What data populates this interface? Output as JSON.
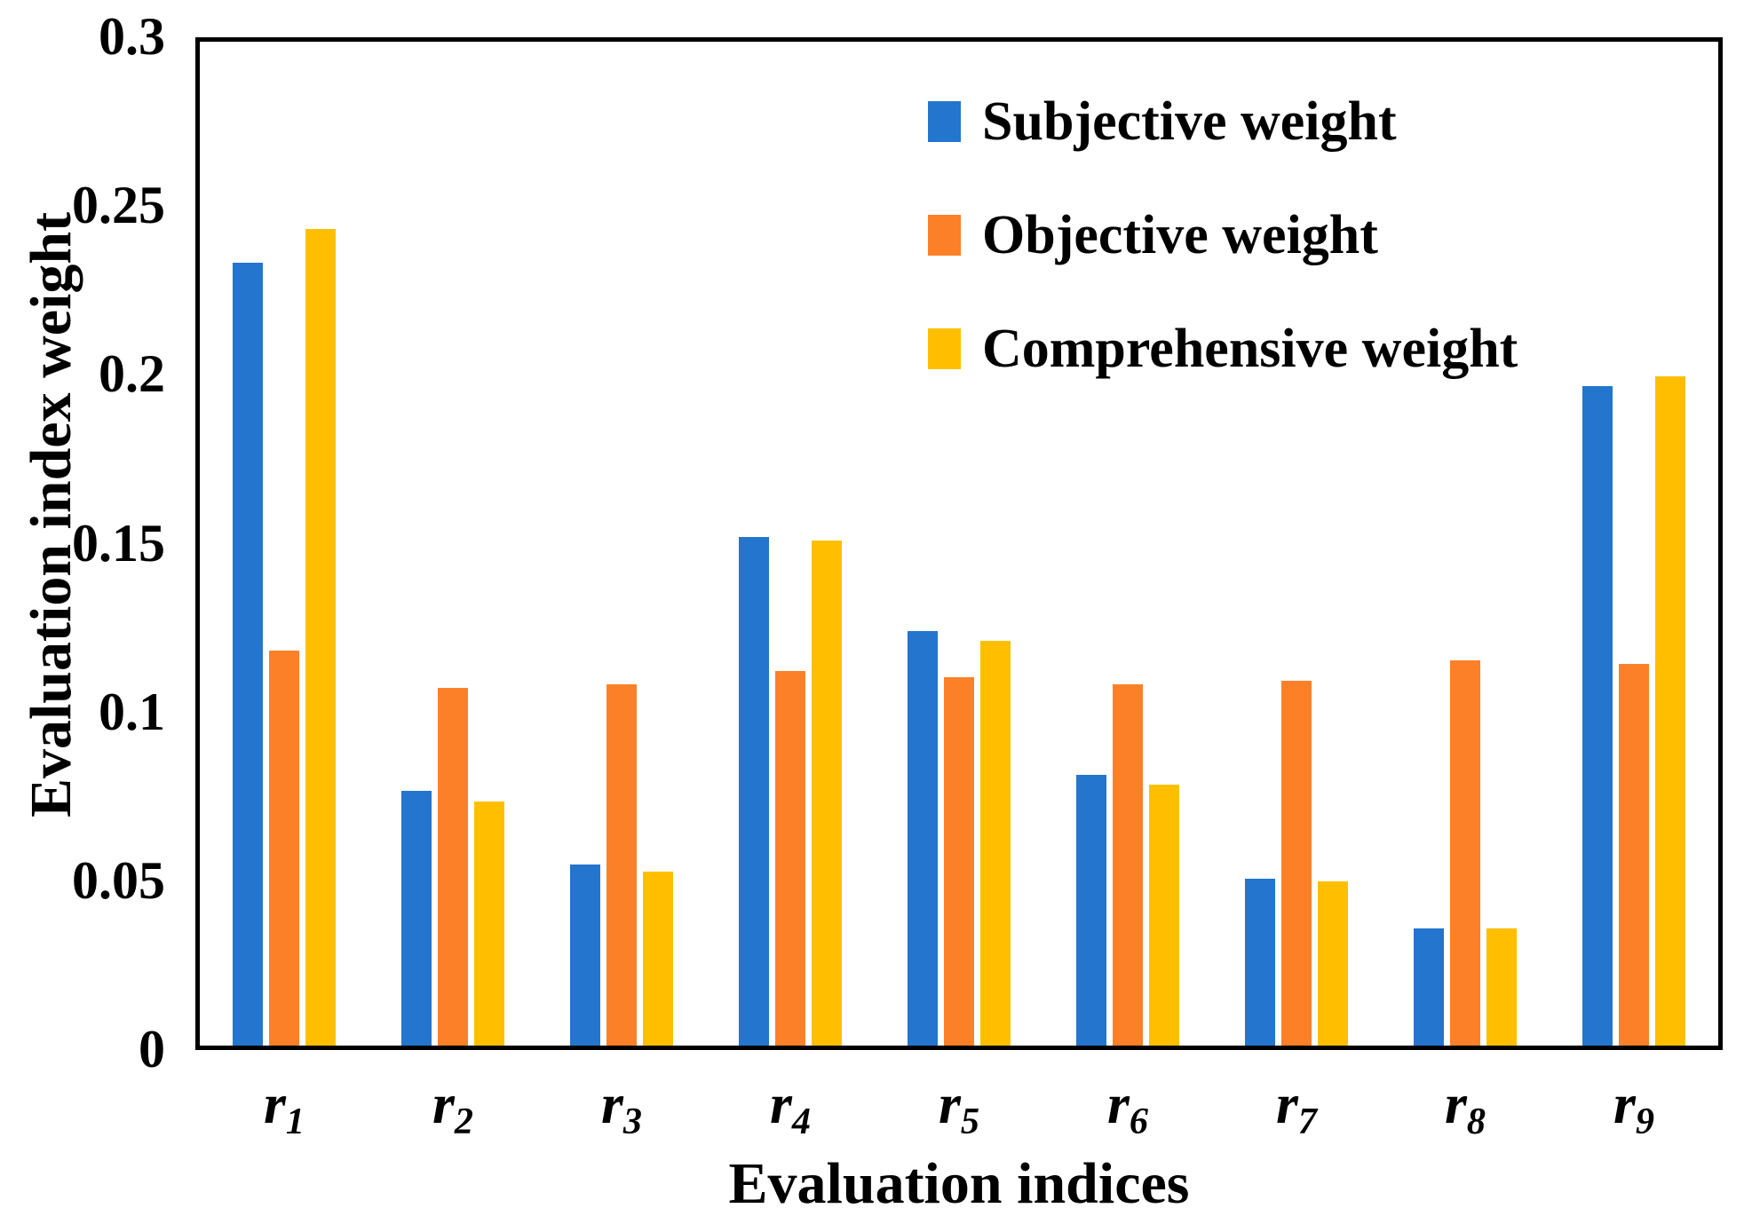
{
  "chart_data": {
    "type": "bar",
    "title": "",
    "xlabel": "Evaluation indices",
    "ylabel": "Evaluation index weight",
    "ylim": [
      0,
      0.3
    ],
    "yticks": [
      {
        "label": "0.3",
        "value": 0.3
      },
      {
        "label": "0.25",
        "value": 0.25
      },
      {
        "label": "0.2",
        "value": 0.2
      },
      {
        "label": "0.15",
        "value": 0.15
      },
      {
        "label": "0.1",
        "value": 0.1
      },
      {
        "label": "0.05",
        "value": 0.05
      },
      {
        "label": "0",
        "value": 0
      }
    ],
    "grid": false,
    "legend_position": "inside-top-right",
    "categories": [
      {
        "base": "r",
        "sub": "1"
      },
      {
        "base": "r",
        "sub": "2"
      },
      {
        "base": "r",
        "sub": "3"
      },
      {
        "base": "r",
        "sub": "4"
      },
      {
        "base": "r",
        "sub": "5"
      },
      {
        "base": "r",
        "sub": "6"
      },
      {
        "base": "r",
        "sub": "7"
      },
      {
        "base": "r",
        "sub": "8"
      },
      {
        "base": "r",
        "sub": "9"
      }
    ],
    "series": [
      {
        "name": "Subjective weight",
        "color": "#2375CE",
        "values": [
          0.234,
          0.076,
          0.054,
          0.152,
          0.124,
          0.081,
          0.05,
          0.035,
          0.197
        ]
      },
      {
        "name": "Objective weight",
        "color": "#FC8027",
        "values": [
          0.118,
          0.107,
          0.108,
          0.112,
          0.11,
          0.108,
          0.109,
          0.115,
          0.114
        ]
      },
      {
        "name": "Comprehensive weight",
        "color": "#FFBF00",
        "values": [
          0.244,
          0.073,
          0.052,
          0.151,
          0.121,
          0.078,
          0.049,
          0.035,
          0.2
        ]
      }
    ]
  },
  "colors": {
    "axis": "#000000",
    "background": "#ffffff",
    "series_blue": "#2375CE",
    "series_orange": "#FC8027",
    "series_yellow": "#FFBF00"
  }
}
